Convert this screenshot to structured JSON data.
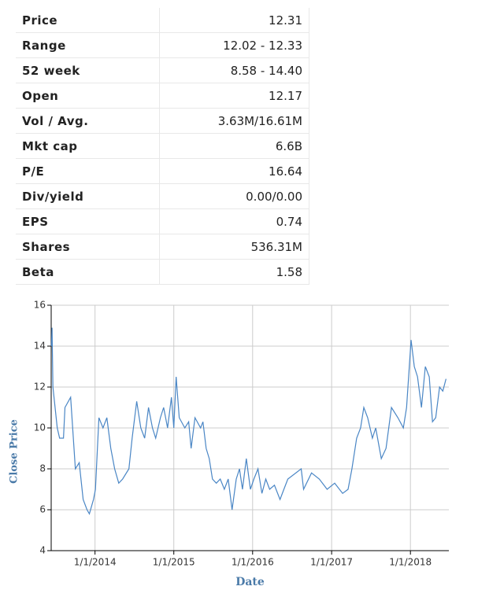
{
  "table": {
    "rows": [
      [
        "Price",
        "12.31"
      ],
      [
        "Range",
        "12.02 - 12.33"
      ],
      [
        "52 week",
        "8.58 - 14.40"
      ],
      [
        "Open",
        "12.17"
      ],
      [
        "Vol / Avg.",
        "3.63M/16.61M"
      ],
      [
        "Mkt cap",
        "6.6B"
      ],
      [
        "P/E",
        "16.64"
      ],
      [
        "Div/yield",
        "0.00/0.00"
      ],
      [
        "EPS",
        "0.74"
      ],
      [
        "Shares",
        "536.31M"
      ],
      [
        "Beta",
        "1.58"
      ]
    ]
  },
  "chart_data": {
    "type": "line",
    "xlabel": "Date",
    "ylabel": "Close Price",
    "color": "#4a86c5",
    "grid": true,
    "xlim": [
      "2013-06-12",
      "2018-06-28"
    ],
    "xticks": [
      {
        "value": "2014-01-01",
        "label": "1/1/2014"
      },
      {
        "value": "2015-01-01",
        "label": "1/1/2015"
      },
      {
        "value": "2016-01-01",
        "label": "1/1/2016"
      },
      {
        "value": "2017-01-01",
        "label": "1/1/2017"
      },
      {
        "value": "2018-01-01",
        "label": "1/1/2018"
      }
    ],
    "ylim": [
      4,
      16
    ],
    "yticks": [
      4,
      6,
      8,
      10,
      12,
      14,
      16
    ],
    "x": [
      "2013-06-13",
      "2013-06-16",
      "2013-06-20",
      "2013-07-10",
      "2013-07-21",
      "2013-08-08",
      "2013-08-15",
      "2013-09-10",
      "2013-10-02",
      "2013-10-20",
      "2013-11-07",
      "2013-11-25",
      "2013-12-06",
      "2013-12-25",
      "2014-01-03",
      "2014-01-19",
      "2014-02-07",
      "2014-02-25",
      "2014-03-15",
      "2014-04-02",
      "2014-04-21",
      "2014-05-09",
      "2014-06-07",
      "2014-06-22",
      "2014-07-13",
      "2014-08-01",
      "2014-08-19",
      "2014-09-06",
      "2014-09-24",
      "2014-10-09",
      "2014-10-31",
      "2014-11-15",
      "2014-12-03",
      "2014-12-21",
      "2015-01-01",
      "2015-01-12",
      "2015-01-26",
      "2015-02-21",
      "2015-03-11",
      "2015-03-22",
      "2015-04-09",
      "2015-05-05",
      "2015-05-16",
      "2015-05-31",
      "2015-06-14",
      "2015-06-29",
      "2015-07-17",
      "2015-08-04",
      "2015-08-23",
      "2015-09-10",
      "2015-09-28",
      "2015-10-17",
      "2015-11-01",
      "2015-11-15",
      "2015-12-03",
      "2015-12-22",
      "2016-01-07",
      "2016-01-26",
      "2016-02-13",
      "2016-03-02",
      "2016-03-20",
      "2016-04-11",
      "2016-05-07",
      "2016-05-25",
      "2016-06-12",
      "2016-08-13",
      "2016-08-24",
      "2016-09-30",
      "2016-11-05",
      "2016-12-11",
      "2017-01-15",
      "2017-02-21",
      "2017-03-18",
      "2017-04-05",
      "2017-04-27",
      "2017-05-15",
      "2017-05-30",
      "2017-06-17",
      "2017-07-09",
      "2017-07-24",
      "2017-08-19",
      "2017-09-10",
      "2017-10-05",
      "2017-11-04",
      "2017-11-29",
      "2017-12-14",
      "2018-01-04",
      "2018-01-19",
      "2018-02-03",
      "2018-02-21",
      "2018-03-11",
      "2018-03-29",
      "2018-04-13",
      "2018-04-28",
      "2018-05-16",
      "2018-05-31",
      "2018-06-15"
    ],
    "values": [
      14,
      14.9,
      12,
      10,
      9.5,
      9.5,
      11,
      11.5,
      8,
      8.3,
      6.5,
      6,
      5.8,
      6.5,
      7,
      10.5,
      10,
      10.5,
      9,
      8,
      7.3,
      7.5,
      8,
      9.5,
      11.3,
      10,
      9.5,
      11,
      10,
      9.5,
      10.5,
      11,
      10,
      11.5,
      10,
      12.5,
      10.5,
      10,
      10.3,
      9,
      10.5,
      10,
      10.3,
      9,
      8.5,
      7.5,
      7.3,
      7.5,
      7,
      7.5,
      6,
      7.5,
      8,
      7,
      8.5,
      7,
      7.5,
      8,
      6.8,
      7.5,
      7,
      7.2,
      6.5,
      7,
      7.5,
      8,
      7,
      7.8,
      7.5,
      7,
      7.3,
      6.8,
      7,
      8,
      9.5,
      10,
      11,
      10.5,
      9.5,
      10,
      8.5,
      9,
      11,
      10.5,
      10,
      11,
      14.3,
      13,
      12.5,
      11,
      13,
      12.5,
      10.3,
      10.5,
      12,
      11.8,
      12.4
    ]
  }
}
